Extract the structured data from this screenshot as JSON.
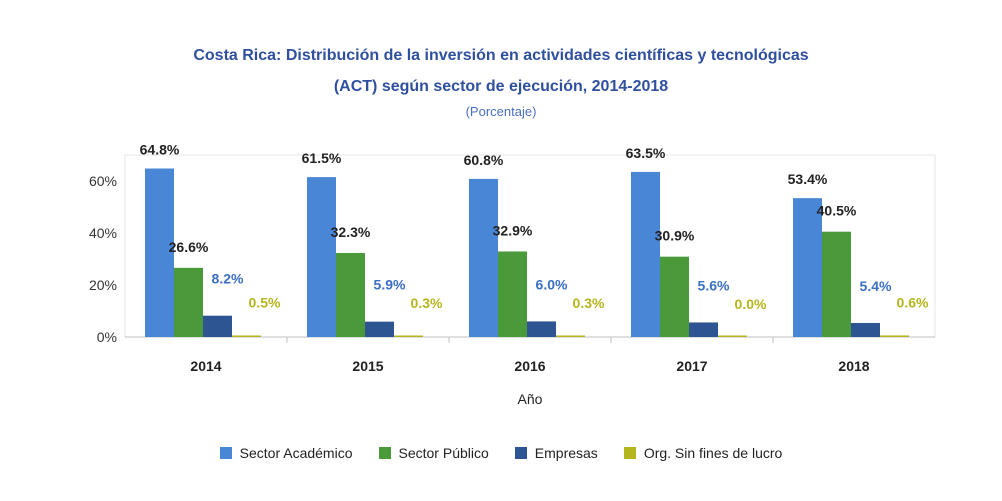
{
  "chart_data": {
    "type": "bar",
    "title": "Costa Rica: Distribución de la inversión en actividades científicas y tecnológicas",
    "title_line2": "(ACT) según sector de ejecución, 2014-2018",
    "subtitle": "(Porcentaje)",
    "xlabel": "Año",
    "ylabel": "",
    "ylim": [
      0,
      70
    ],
    "yticks": [
      0,
      20,
      40,
      60
    ],
    "ytick_labels": [
      "0%",
      "20%",
      "40%",
      "60%"
    ],
    "categories": [
      "2014",
      "2015",
      "2016",
      "2017",
      "2018"
    ],
    "series": [
      {
        "name": "Sector Académico",
        "color": "#4a86d6",
        "label_color": "#222222",
        "values": [
          64.8,
          61.5,
          60.8,
          63.5,
          53.4
        ],
        "labels": [
          "64.8%",
          "61.5%",
          "60.8%",
          "63.5%",
          "53.4%"
        ]
      },
      {
        "name": "Sector Público",
        "color": "#4a9a3c",
        "label_color": "#222222",
        "values": [
          26.6,
          32.3,
          32.9,
          30.9,
          40.5
        ],
        "labels": [
          "26.6%",
          "32.3%",
          "32.9%",
          "30.9%",
          "40.5%"
        ]
      },
      {
        "name": "Empresas",
        "color": "#2d5592",
        "label_color": "#3a6fc4",
        "values": [
          8.2,
          5.9,
          6.0,
          5.6,
          5.4
        ],
        "labels": [
          "8.2%",
          "5.9%",
          "6.0%",
          "5.6%",
          "5.4%"
        ]
      },
      {
        "name": "Org. Sin fines de lucro",
        "color": "#b5b51e",
        "label_color": "#b5b51e",
        "values": [
          0.5,
          0.3,
          0.3,
          0.0,
          0.6
        ],
        "labels": [
          "0.5%",
          "0.3%",
          "0.3%",
          "0.0%",
          "0.6%"
        ]
      }
    ],
    "legend_position": "bottom",
    "grid": false
  }
}
